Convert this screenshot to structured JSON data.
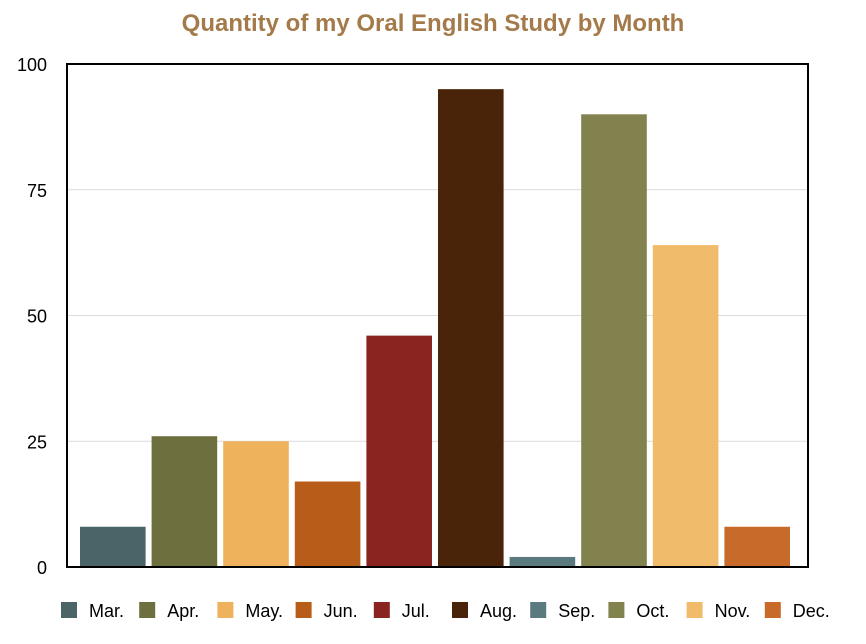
{
  "chart_data": {
    "type": "bar",
    "title": "Quantity of my Oral English Study by Month",
    "xlabel": "",
    "ylabel": "",
    "ylim": [
      0,
      100
    ],
    "yticks": [
      "0",
      "25",
      "50",
      "75",
      "100"
    ],
    "ytick_values": [
      0,
      25,
      50,
      75,
      100
    ],
    "grid": true,
    "legend_position": "bottom",
    "series": [
      {
        "name": "Mar.",
        "value": 8,
        "color": "#4a6468"
      },
      {
        "name": "Apr.",
        "value": 26,
        "color": "#6e6f3e"
      },
      {
        "name": "May.",
        "value": 25,
        "color": "#efb25c"
      },
      {
        "name": "Jun.",
        "value": 17,
        "color": "#b85c1a"
      },
      {
        "name": "Jul.",
        "value": 46,
        "color": "#8a2420"
      },
      {
        "name": "Aug.",
        "value": 95,
        "color": "#4a2408"
      },
      {
        "name": "Sep.",
        "value": 2,
        "color": "#5a7a80"
      },
      {
        "name": "Oct.",
        "value": 90,
        "color": "#82824f"
      },
      {
        "name": "Nov.",
        "value": 64,
        "color": "#f0bb6a"
      },
      {
        "name": "Dec.",
        "value": 8,
        "color": "#c86a2a"
      }
    ]
  }
}
